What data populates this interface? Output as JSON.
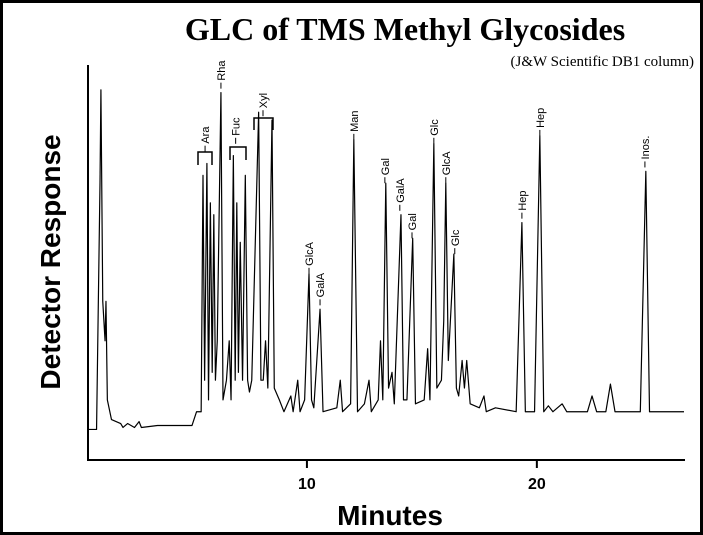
{
  "chart_data": {
    "type": "line",
    "title": "GLC of TMS Methyl Glycosides",
    "subtitle": "(J&W Scientific DB1 column)",
    "x_label": "Minutes",
    "y_label": "Detector Response",
    "color": "#000000",
    "xlim": [
      0.5,
      26.4
    ],
    "ylim": [
      0,
      100
    ],
    "xticks": [
      10,
      20
    ],
    "x": [
      0.5,
      0.85,
      1.0,
      1.04,
      1.12,
      1.22,
      1.26,
      1.32,
      1.5,
      1.9,
      2.0,
      2.2,
      2.5,
      2.7,
      2.8,
      3.5,
      5.0,
      5.2,
      5.4,
      5.48,
      5.55,
      5.65,
      5.72,
      5.8,
      5.88,
      5.95,
      6.02,
      6.1,
      6.26,
      6.35,
      6.5,
      6.62,
      6.7,
      6.8,
      6.88,
      6.95,
      7.02,
      7.1,
      7.2,
      7.32,
      7.42,
      7.5,
      7.6,
      7.9,
      8.0,
      8.1,
      8.2,
      8.3,
      8.48,
      8.58,
      8.8,
      9.0,
      9.3,
      9.4,
      9.6,
      9.7,
      9.9,
      10.09,
      10.2,
      10.3,
      10.57,
      10.7,
      11.3,
      11.45,
      11.55,
      11.9,
      12.04,
      12.2,
      12.5,
      12.7,
      12.8,
      13.1,
      13.2,
      13.3,
      13.43,
      13.55,
      13.7,
      13.8,
      14.09,
      14.2,
      14.35,
      14.6,
      14.72,
      15.1,
      15.25,
      15.35,
      15.52,
      15.65,
      15.85,
      15.95,
      16.04,
      16.15,
      16.39,
      16.5,
      16.6,
      16.75,
      16.85,
      16.95,
      17.1,
      17.5,
      17.7,
      17.8,
      18.2,
      19.1,
      19.35,
      19.5,
      19.9,
      20.13,
      20.3,
      20.5,
      20.7,
      21.1,
      21.3,
      22.2,
      22.4,
      22.6,
      23.0,
      23.2,
      23.4,
      24.5,
      24.74,
      24.9,
      26.4
    ],
    "values": [
      7.5,
      7.5,
      70,
      93.7,
      40,
      30,
      40,
      15,
      10,
      9,
      8,
      9,
      8,
      9.5,
      8,
      8.5,
      8.5,
      12,
      12,
      72,
      20,
      75,
      15,
      65,
      22,
      62,
      20,
      30,
      93,
      15,
      20,
      30,
      15,
      77,
      20,
      65,
      22,
      55,
      20,
      72,
      20,
      17,
      20,
      88,
      20,
      20,
      30,
      18,
      86,
      18,
      15,
      12,
      16,
      12,
      20,
      12,
      15,
      47,
      15,
      13,
      38,
      12,
      13,
      20,
      12,
      14,
      81,
      12,
      14,
      20,
      12,
      15,
      30,
      15,
      70,
      18,
      22,
      14,
      62,
      15,
      15,
      56,
      14,
      15,
      28,
      15,
      80,
      18,
      20,
      35,
      70,
      25,
      52,
      18,
      16,
      25,
      18,
      25,
      14,
      13,
      16,
      12,
      13,
      12,
      60,
      12,
      12,
      82,
      12,
      13.5,
      12,
      14,
      12,
      12,
      16,
      12,
      12,
      19,
      12,
      12,
      73,
      12,
      12
    ],
    "annotations": [
      {
        "text": "Ara",
        "x": 5.57,
        "y": 78
      },
      {
        "text": "Rha",
        "x": 6.26,
        "y": 94
      },
      {
        "text": "Fuc",
        "x": 6.9,
        "y": 80
      },
      {
        "text": "Xyl",
        "x": 8.09,
        "y": 87
      },
      {
        "text": "GlcA",
        "x": 10.09,
        "y": 47
      },
      {
        "text": "GalA",
        "x": 10.57,
        "y": 39
      },
      {
        "text": "Man",
        "x": 12.04,
        "y": 81
      },
      {
        "text": "Gal",
        "x": 13.39,
        "y": 70
      },
      {
        "text": "GalA",
        "x": 14.04,
        "y": 63
      },
      {
        "text": "Gal",
        "x": 14.57,
        "y": 56
      },
      {
        "text": "Glc",
        "x": 15.52,
        "y": 80
      },
      {
        "text": "GlcA",
        "x": 16.04,
        "y": 70
      },
      {
        "text": "Glc",
        "x": 16.43,
        "y": 52
      },
      {
        "text": "Hep",
        "x": 19.35,
        "y": 61
      },
      {
        "text": "Hep",
        "x": 20.13,
        "y": 82
      },
      {
        "text": "Inos.",
        "x": 24.7,
        "y": 74
      }
    ]
  }
}
